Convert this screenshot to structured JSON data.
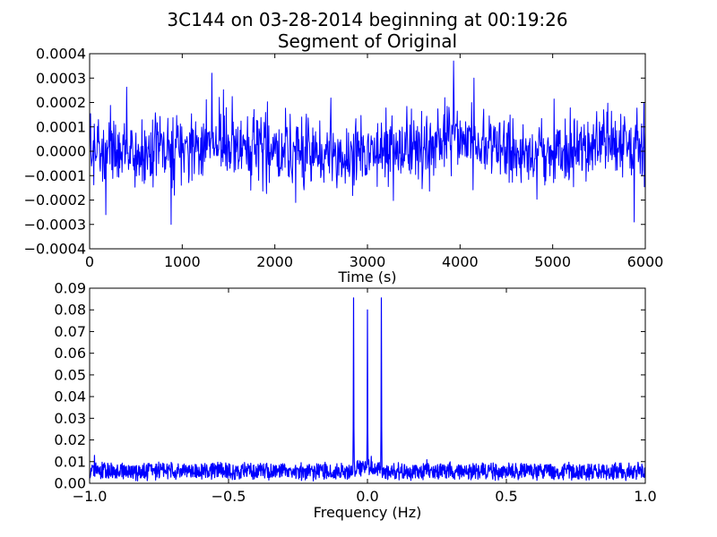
{
  "figure": {
    "title_line1": "3C144 on 03-28-2014 beginning at 00:19:26",
    "title_line2": "Segment of Original"
  },
  "chart_data": [
    {
      "type": "line",
      "name": "time-series",
      "xlabel": "Time (s)",
      "ylabel": "",
      "xlim": [
        0,
        6000
      ],
      "ylim": [
        -0.0004,
        0.0004
      ],
      "x_ticks": [
        0,
        1000,
        2000,
        3000,
        4000,
        5000,
        6000
      ],
      "x_tick_labels": [
        "0",
        "1000",
        "2000",
        "3000",
        "4000",
        "5000",
        "6000"
      ],
      "y_ticks": [
        -0.0004,
        -0.0003,
        -0.0002,
        -0.0001,
        0.0,
        0.0001,
        0.0002,
        0.0003,
        0.0004
      ],
      "y_tick_labels": [
        "−0.0004",
        "−0.0003",
        "−0.0002",
        "−0.0001",
        "0.0000",
        "0.0001",
        "0.0002",
        "0.0003",
        "0.0004"
      ],
      "color": "#0000ff",
      "noise": {
        "n_points": 1200,
        "sigma": 7e-05,
        "seed": 7
      },
      "envelope_bumps": [
        {
          "t": 1350,
          "amp": 4e-05,
          "width": 300
        },
        {
          "t": 3950,
          "amp": 6e-05,
          "width": 350
        },
        {
          "t": 5600,
          "amp": 3e-05,
          "width": 300
        }
      ],
      "spikes": [
        {
          "t": 175,
          "value": -0.00026
        },
        {
          "t": 880,
          "value": -0.0003
        },
        {
          "t": 1320,
          "value": 0.00032
        },
        {
          "t": 3930,
          "value": 0.00037
        },
        {
          "t": 4150,
          "value": 0.0003
        },
        {
          "t": 5880,
          "value": -0.00029
        }
      ]
    },
    {
      "type": "line",
      "name": "spectrum",
      "xlabel": "Frequency (Hz)",
      "ylabel": "",
      "xlim": [
        -1.0,
        1.0
      ],
      "ylim": [
        0.0,
        0.09
      ],
      "x_ticks": [
        -1.0,
        -0.5,
        0.0,
        0.5,
        1.0
      ],
      "x_tick_labels": [
        "−1.0",
        "−0.5",
        "0.0",
        "0.5",
        "1.0"
      ],
      "y_ticks": [
        0.0,
        0.01,
        0.02,
        0.03,
        0.04,
        0.05,
        0.06,
        0.07,
        0.08,
        0.09
      ],
      "y_tick_labels": [
        "0.00",
        "0.01",
        "0.02",
        "0.03",
        "0.04",
        "0.05",
        "0.06",
        "0.07",
        "0.08",
        "0.09"
      ],
      "color": "#0000ff",
      "noise": {
        "n_points": 1600,
        "mean": 0.0055,
        "spread": 0.0045,
        "seed": 13
      },
      "peaks": [
        {
          "freq": -0.05,
          "value": 0.0855
        },
        {
          "freq": 0.0,
          "value": 0.08
        },
        {
          "freq": 0.05,
          "value": 0.0855
        }
      ]
    }
  ]
}
